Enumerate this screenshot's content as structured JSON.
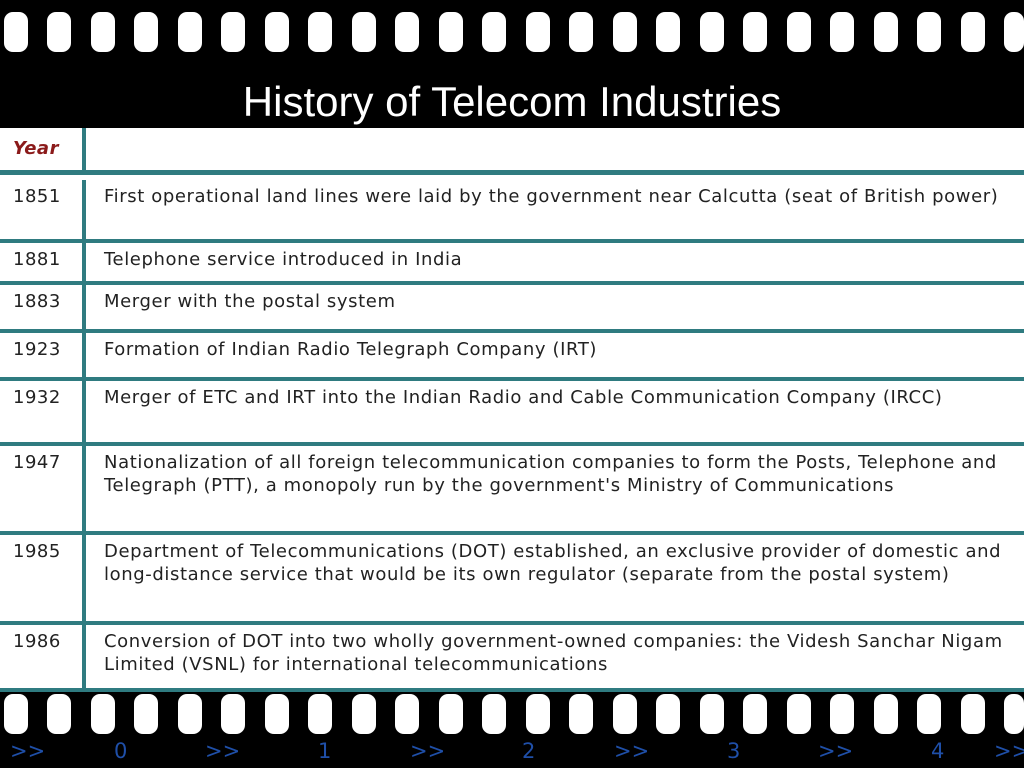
{
  "slide": {
    "title": "History of Telecom Industries"
  },
  "table": {
    "header": {
      "year_label": "Year",
      "event_label": ""
    },
    "rows": [
      {
        "year": "1851",
        "event": "First operational land lines were laid by the government near Calcutta (seat of British power)"
      },
      {
        "year": "1881",
        "event": "Telephone service introduced in India"
      },
      {
        "year": "1883",
        "event": "Merger with the postal system"
      },
      {
        "year": "1923",
        "event": "Formation of Indian Radio Telegraph Company (IRT)"
      },
      {
        "year": "1932",
        "event": "Merger of ETC and IRT into the Indian Radio and Cable Communication Company (IRCC)"
      },
      {
        "year": "1947",
        "event": "Nationalization of all foreign telecommunication companies to form the Posts, Telephone and Telegraph (PTT), a monopoly run by the government's Ministry of Communications"
      },
      {
        "year": "1985",
        "event": "Department of Telecommunications (DOT) established, an exclusive provider of domestic and long-distance service that would be its own regulator (separate from the postal system)"
      },
      {
        "year": "1986",
        "event": "Conversion of DOT into two wholly government-owned companies: the Videsh Sanchar Nigam Limited (VSNL) for international telecommunications"
      }
    ]
  },
  "film_counter": [
    ">>",
    "0",
    ">>",
    "1",
    ">>",
    "2",
    ">>",
    "3",
    ">>",
    "4",
    ">>"
  ]
}
